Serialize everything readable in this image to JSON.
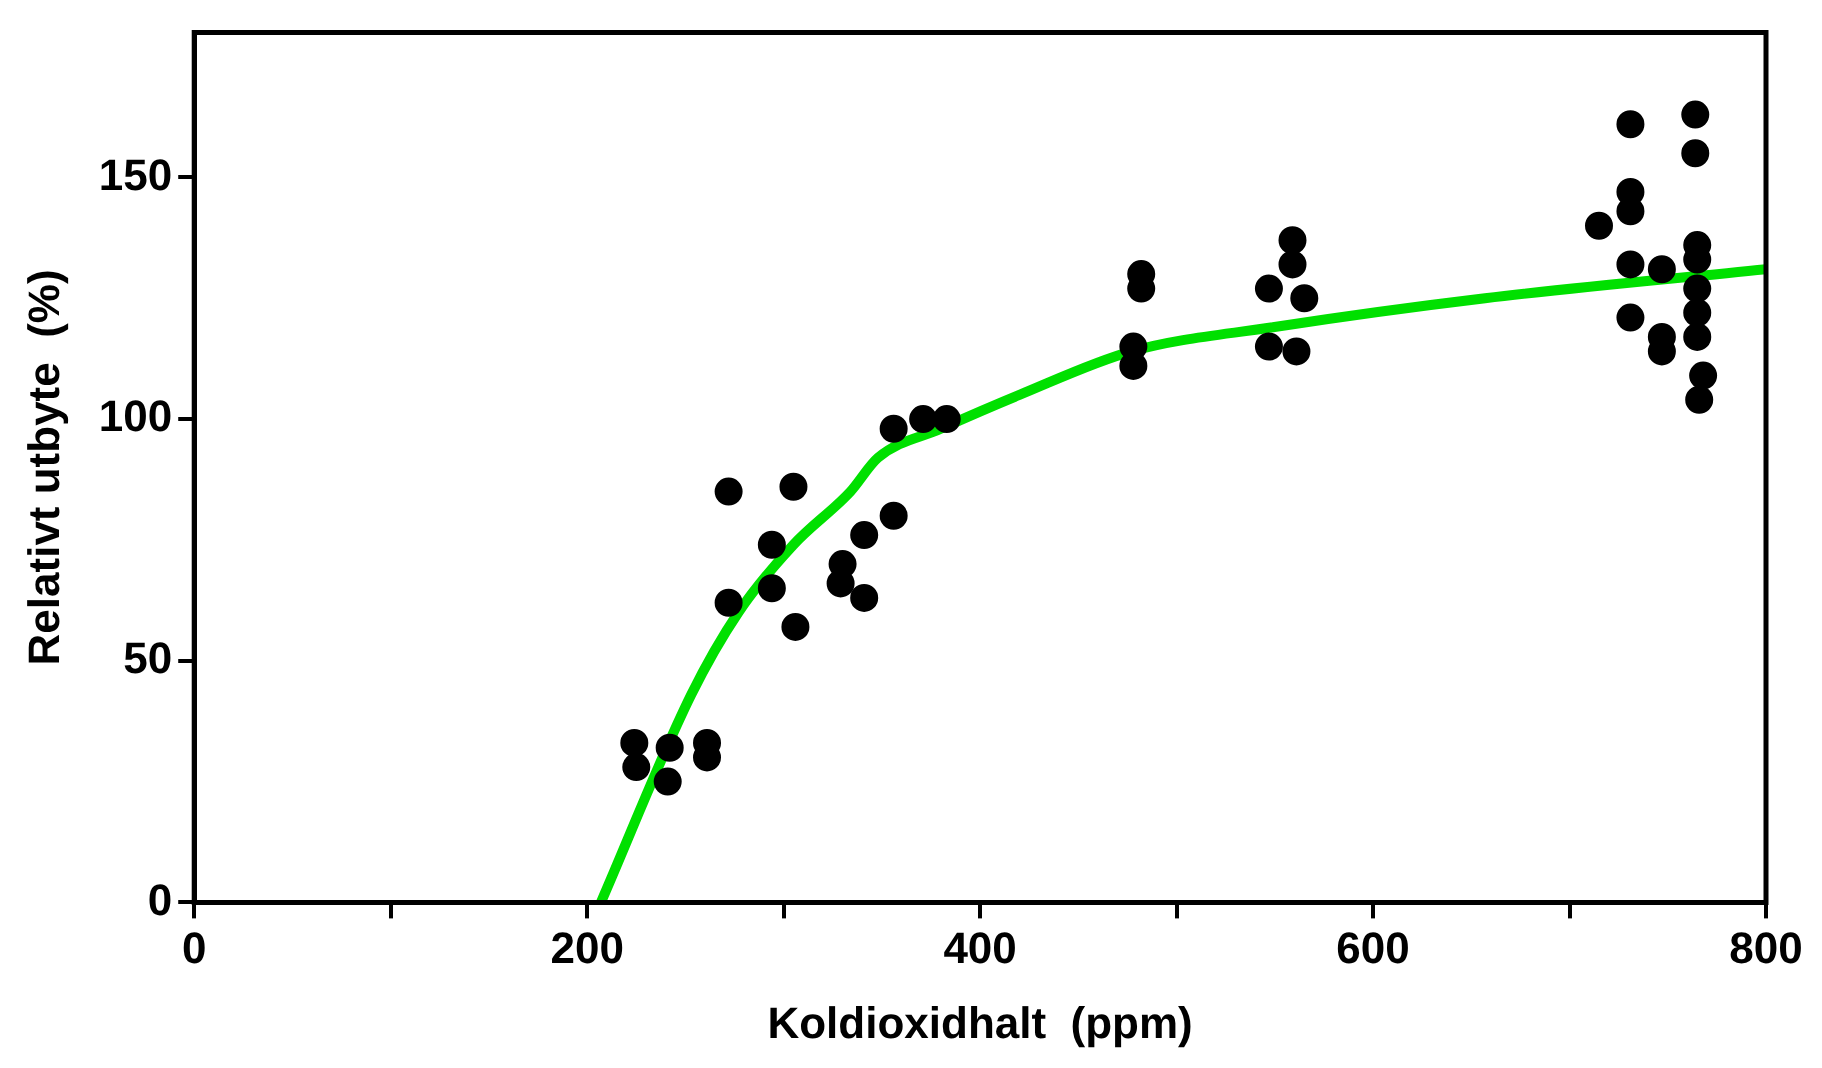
{
  "chart_data": {
    "type": "scatter",
    "xlabel": "Koldioxidhalt  (ppm)",
    "ylabel": "Relativt utbyte  (%)",
    "xlim": [
      0,
      800
    ],
    "xticks": [
      0,
      {
        "value": 100,
        "label": null
      },
      200,
      {
        "value": 300,
        "label": null
      },
      400,
      {
        "value": 500,
        "label": null
      },
      600,
      {
        "value": 700,
        "label": null
      },
      800
    ],
    "ylim": [
      0,
      180
    ],
    "yticks": [
      0,
      50,
      100,
      150
    ],
    "grid": false,
    "legend": false,
    "marker": "circle",
    "series": [
      {
        "color": "#000000",
        "x": [
          224,
          225,
          242,
          241,
          261,
          261,
          272,
          272,
          294,
          294,
          305,
          306,
          330,
          329,
          341,
          341,
          356,
          356,
          371,
          383,
          478,
          478,
          482,
          482,
          547,
          559,
          559,
          565,
          547,
          561,
          715,
          731,
          731,
          731,
          731,
          731,
          747,
          747,
          747,
          764,
          764,
          765,
          765,
          765,
          765,
          765,
          768,
          766
        ],
        "values": [
          33,
          28,
          32,
          25,
          33,
          30,
          85,
          62,
          74,
          65,
          86,
          57,
          70,
          66,
          76,
          63,
          98,
          80,
          100,
          100,
          115,
          111,
          130,
          127,
          127,
          137,
          132,
          125,
          115,
          114,
          140,
          161,
          147,
          143,
          132,
          121,
          131,
          117,
          114,
          163,
          155,
          136,
          133,
          127,
          122,
          117,
          109,
          104
        ]
      },
      {
        "type": "line",
        "color": "#00e000",
        "marker": "none",
        "x": [
          207,
          253,
          277,
          305,
          334,
          348,
          380,
          420,
          477,
          549,
          657,
          800
        ],
        "values": [
          0,
          43,
          60,
          74,
          85,
          92,
          98,
          105,
          114,
          119,
          125,
          131
        ]
      }
    ]
  }
}
